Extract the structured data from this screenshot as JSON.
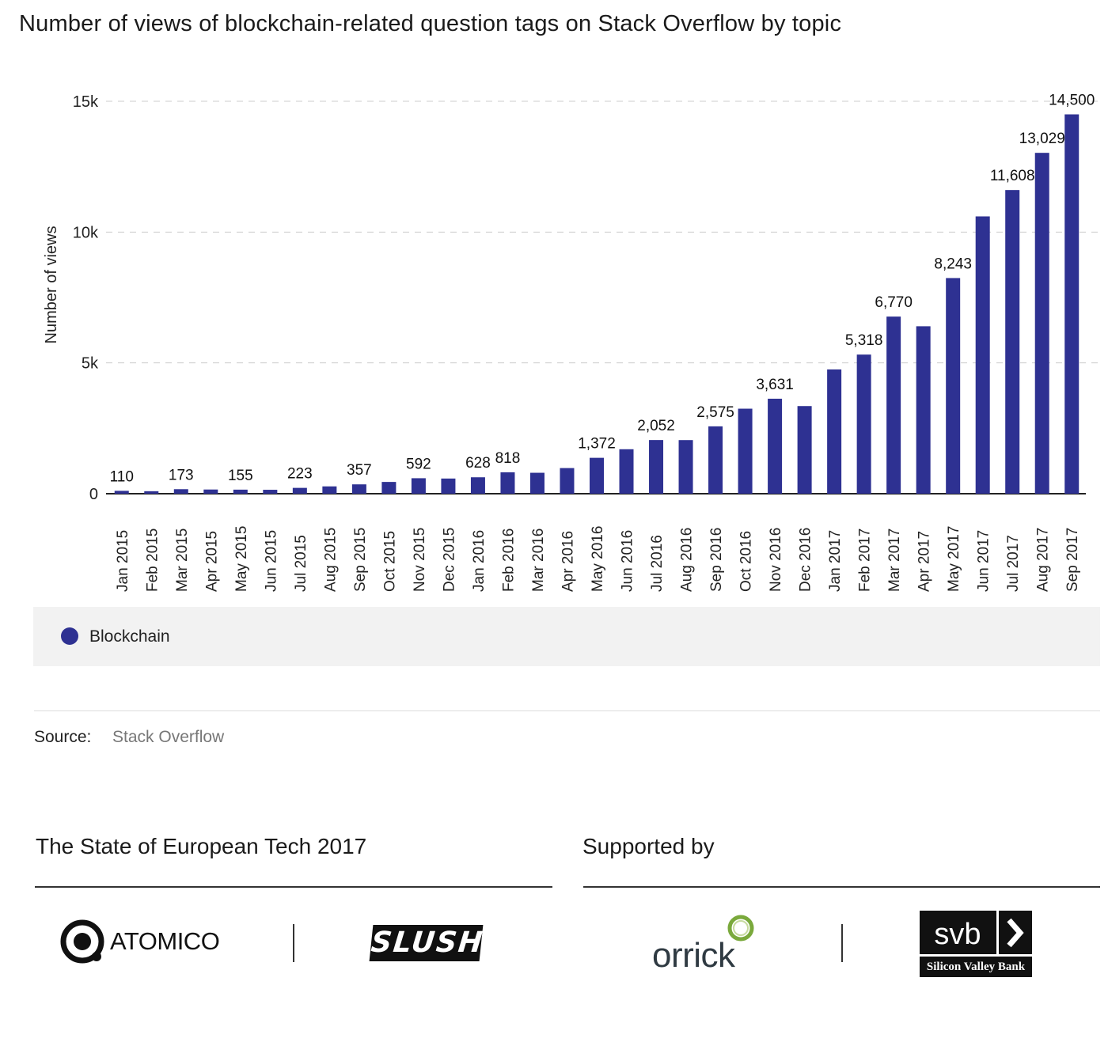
{
  "title": "Number of views of blockchain-related question tags on Stack Overflow by topic",
  "legend": {
    "label": "Blockchain",
    "color": "#2e3192"
  },
  "source": {
    "label": "Source:",
    "value": "Stack Overflow"
  },
  "footer": {
    "left_title": "The State of European Tech 2017",
    "right_title": "Supported by",
    "logos": {
      "atomico": "ATOMICO",
      "slush": "SLUSH",
      "orrick": "orrick",
      "svb": "svb",
      "svb_bank": "Silicon Valley Bank"
    }
  },
  "chart_data": {
    "type": "bar",
    "title": "Number of views of blockchain-related question tags on Stack Overflow by topic",
    "xlabel": "",
    "ylabel": "Number of views",
    "ylim": [
      0,
      15000
    ],
    "yticks": [
      0,
      5000,
      10000,
      15000
    ],
    "ytick_labels": [
      "0",
      "5k",
      "10k",
      "15k"
    ],
    "grid": "horizontal dashed",
    "legend_placement": "bottom",
    "categories": [
      "Jan 2015",
      "Feb 2015",
      "Mar 2015",
      "Apr 2015",
      "May 2015",
      "Jun 2015",
      "Jul 2015",
      "Aug 2015",
      "Sep 2015",
      "Oct 2015",
      "Nov 2015",
      "Dec 2015",
      "Jan 2016",
      "Feb 2016",
      "Mar 2016",
      "Apr 2016",
      "May 2016",
      "Jun 2016",
      "Jul 2016",
      "Aug 2016",
      "Sep 2016",
      "Oct 2016",
      "Nov 2016",
      "Dec 2016",
      "Jan 2017",
      "Feb 2017",
      "Mar 2017",
      "Apr 2017",
      "May 2017",
      "Jun 2017",
      "Jul 2017",
      "Aug 2017",
      "Sep 2017"
    ],
    "series": [
      {
        "name": "Blockchain",
        "color": "#2e3192",
        "values": [
          110,
          95,
          173,
          160,
          155,
          150,
          223,
          280,
          357,
          450,
          592,
          580,
          628,
          818,
          800,
          980,
          1372,
          1700,
          2052,
          2050,
          2575,
          3250,
          3631,
          3350,
          4750,
          5318,
          6770,
          6400,
          8243,
          10600,
          11608,
          13029,
          14500
        ],
        "data_labels": [
          "110",
          "",
          "173",
          "",
          "155",
          "",
          "223",
          "",
          "357",
          "",
          "592",
          "",
          "628",
          "818",
          "",
          "",
          "1,372",
          "",
          "2,052",
          "",
          "2,575",
          "",
          "3,631",
          "",
          "",
          "5,318",
          "6,770",
          "",
          "8,243",
          "",
          "11,608",
          "13,029",
          "14,500"
        ]
      }
    ]
  }
}
